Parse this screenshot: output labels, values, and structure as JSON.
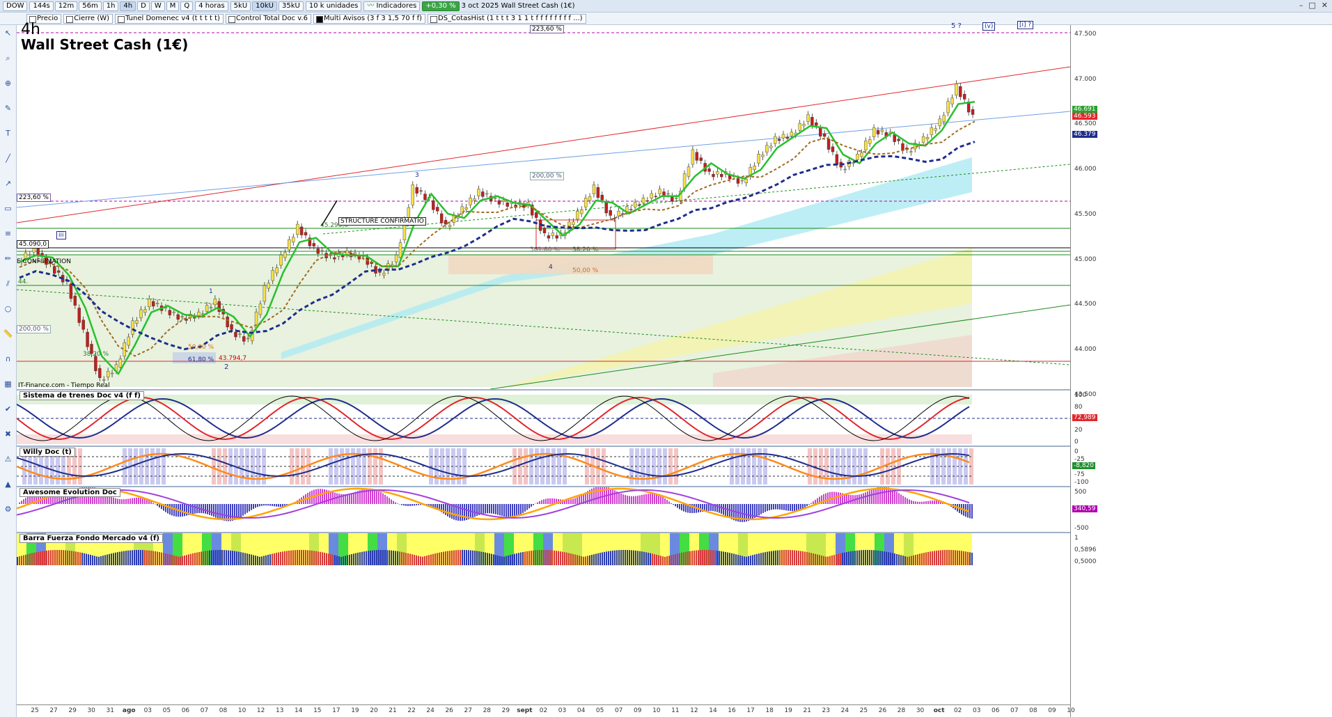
{
  "toolbar": {
    "symbol": "DOW",
    "timeframes": [
      "144s",
      "12m",
      "56m",
      "1h",
      "4h",
      "D",
      "W",
      "M",
      "Q"
    ],
    "active_timeframe": "4h",
    "period": "4 horas",
    "ticks": [
      "5kU",
      "10kU",
      "35kU"
    ],
    "active_tick": "10kU",
    "units": "10 k unidades",
    "indicators": "Indicadores",
    "change_badge": "+0,30 %",
    "window_title": "3 oct 2025  Wall Street Cash (1€)"
  },
  "studies_bar": [
    {
      "label": "Precio",
      "filled": false
    },
    {
      "label": "Cierre (W)",
      "filled": false
    },
    {
      "label": "Tunel Domenec v4 (t t t t t)",
      "filled": false
    },
    {
      "label": "Control Total Doc v.6",
      "filled": false
    },
    {
      "label": "Multi Avisos (3 f 3 1,5 70 f f)",
      "filled": true
    },
    {
      "label": "DS_CotasHist (1 t t t 3 1 1 t f f f f f f f f ...)",
      "filled": false
    }
  ],
  "main_chart": {
    "timeframe_label": "4h",
    "instrument_title": "Wall Street Cash (1€)",
    "source": "IT-Finance.com - Tiempo Real",
    "y_ticks": [
      "47.500",
      "47.000",
      "46.500",
      "46.000",
      "45.500",
      "45.000",
      "44.500",
      "44.000",
      "43.500"
    ],
    "price_tags": [
      {
        "label": "46.691",
        "color": "#27a32d"
      },
      {
        "label": "46.593",
        "color": "#e2262b"
      },
      {
        "label": "46.379",
        "color": "#1f2d8c"
      }
    ],
    "annotations": {
      "fib_223_top": "223,60 %",
      "fib_223_left": "223,60 %",
      "fib_200_mid": "200,00 %",
      "fib_200_left": "200,00 %",
      "fib_3820_left": "38,20 %",
      "fib_5000_low": "50,00 %",
      "fib_6180": "61,80 %",
      "fib_36180": "361,80 %",
      "fib_3820_sept": "38,20 %",
      "fib_5000_sept": "50,00 %",
      "level_45090": "45.090,0",
      "level_43794": "43.794,7",
      "level_45295": "45.295,0",
      "level_44": "44.",
      "structure_1": "STRUCTURE CONFIRMATIO",
      "structure_2": "E CONFIRMATION",
      "wave_1": "1",
      "wave_2": "2",
      "wave_3": "3",
      "wave_4": "4",
      "wave_5": "5 ?",
      "wave_v": "(v)",
      "wave_iii": "[i] ?",
      "marker": "iii"
    }
  },
  "indicators": [
    {
      "title": "Sistema de trenes Doc v4 (f f)",
      "ticks": [
        "100",
        "80",
        "50",
        "20",
        "0"
      ],
      "tag": "72,989"
    },
    {
      "title": "Willy Doc (t)",
      "ticks": [
        "0",
        "-25",
        "-50",
        "-75",
        "-100"
      ],
      "tag": "-8,820"
    },
    {
      "title": "Awesome Evolution Doc",
      "ticks": [
        "500",
        "0",
        "-500"
      ],
      "tag": "340,59"
    },
    {
      "title": "Barra Fuerza Fondo Mercado v4 (f)",
      "ticks": [
        "1",
        "0,5896",
        "0,5000"
      ],
      "tag": ""
    }
  ],
  "x_axis": [
    "25",
    "27",
    "29",
    "30",
    "31",
    "ago",
    "03",
    "05",
    "06",
    "07",
    "08",
    "10",
    "12",
    "13",
    "14",
    "15",
    "17",
    "19",
    "20",
    "21",
    "22",
    "24",
    "26",
    "27",
    "28",
    "29",
    "sept",
    "02",
    "03",
    "04",
    "05",
    "07",
    "09",
    "10",
    "11",
    "12",
    "14",
    "16",
    "17",
    "18",
    "19",
    "21",
    "23",
    "24",
    "25",
    "26",
    "28",
    "30",
    "oct",
    "02",
    "03",
    "06",
    "07",
    "08",
    "09",
    "10"
  ],
  "chart_data": {
    "type": "line",
    "title": "Wall Street Cash (1€)",
    "series": [
      {
        "name": "Wall Street Cash (1€)",
        "values": [
          44900,
          45050,
          44850,
          44650,
          44100,
          43550,
          43700,
          44200,
          44450,
          44350,
          44250,
          44300,
          44450,
          44100,
          44000,
          44600,
          44950,
          45300,
          45050,
          44950,
          45000,
          44950,
          44750,
          44950,
          45750,
          45600,
          45300,
          45500,
          45700,
          45600,
          45550,
          45550,
          45200,
          45200,
          45450,
          45750,
          45400,
          45500,
          45600,
          45700,
          45600,
          46150,
          45900,
          45900,
          45800,
          46100,
          46300,
          46350,
          46550,
          46300,
          45950,
          46100,
          46400,
          46350,
          46150,
          46300,
          46500,
          46900,
          46550
        ]
      }
    ],
    "ylim": [
      43450,
      47600
    ]
  }
}
